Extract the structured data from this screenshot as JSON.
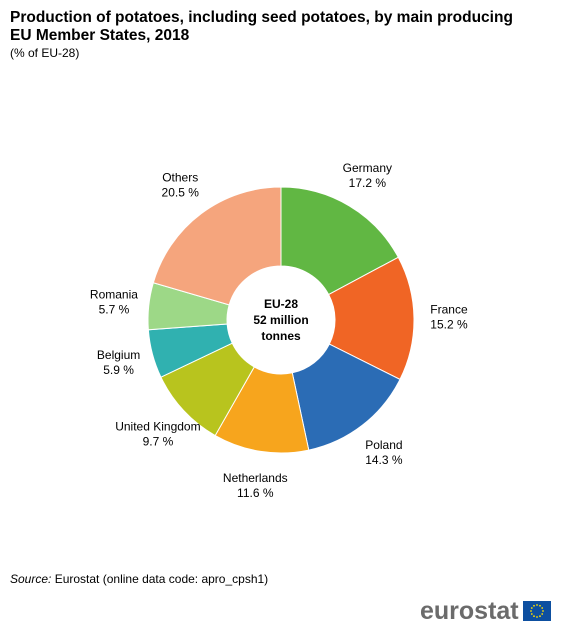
{
  "title": "Production of potatoes, including seed potatoes, by main producing EU Member States, 2018",
  "subtitle": "(% of EU-28)",
  "chart_data": {
    "type": "pie",
    "subtype": "donut",
    "center_label": [
      "EU-28",
      "52 million",
      "tonnes"
    ],
    "slices": [
      {
        "name": "Germany",
        "value": 17.2,
        "label": "17.2 %",
        "color": "#61b743"
      },
      {
        "name": "France",
        "value": 15.2,
        "label": "15.2 %",
        "color": "#f06525"
      },
      {
        "name": "Poland",
        "value": 14.3,
        "label": "14.3 %",
        "color": "#2b6cb5"
      },
      {
        "name": "Netherlands",
        "value": 11.6,
        "label": "11.6 %",
        "color": "#f7a51d"
      },
      {
        "name": "United Kingdom",
        "value": 9.7,
        "label": "9.7 %",
        "color": "#b8c41e"
      },
      {
        "name": "Belgium",
        "value": 5.9,
        "label": "5.9 %",
        "color": "#30b1b0"
      },
      {
        "name": "Romania",
        "value": 5.7,
        "label": "5.7 %",
        "color": "#9dd887"
      },
      {
        "name": "Others",
        "value": 20.5,
        "label": "20.5 %",
        "color": "#f5a57d"
      }
    ]
  },
  "source": {
    "label": "Source:",
    "text": "Eurostat (online data code: apro_cpsh1)"
  },
  "logo": {
    "text": "eurostat",
    "flag_color": "#0d4fa0",
    "star_color": "#ffdd00"
  }
}
